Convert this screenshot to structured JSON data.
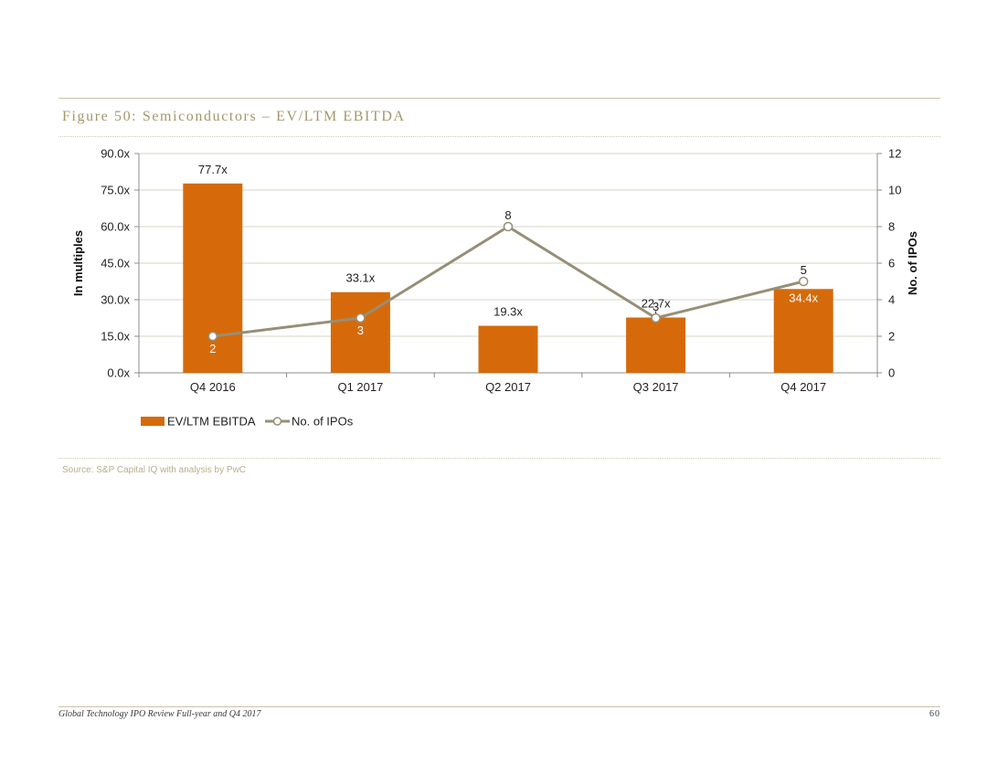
{
  "page": {
    "figure_title": "Figure 50: Semiconductors – EV/LTM EBITDA",
    "source": "Source: S&P Capital IQ with analysis by PwC",
    "footer_left": "Global Technology IPO Review Full-year and Q4 2017",
    "footer_right": "60"
  },
  "colors": {
    "bar": "#d66a0a",
    "line": "#968f77",
    "title": "#a5976c",
    "grid": "#d5d5c8"
  },
  "chart_data": {
    "type": "bar",
    "categories": [
      "Q4 2016",
      "Q1 2017",
      "Q2 2017",
      "Q3 2017",
      "Q4 2017"
    ],
    "bars": {
      "name": "EV/LTM EBITDA",
      "values": [
        77.7,
        33.1,
        19.3,
        22.7,
        34.4
      ],
      "labels": [
        "77.7x",
        "33.1x",
        "19.3x",
        "22.7x",
        "34.4x"
      ]
    },
    "line": {
      "name": "No. of IPOs",
      "values": [
        2,
        3,
        8,
        3,
        5
      ],
      "labels": [
        "2",
        "3",
        "8",
        "3",
        "5"
      ]
    },
    "ylabel_left": "In multiples",
    "ylabel_right": "No. of IPOs",
    "ylim_left": [
      0,
      90
    ],
    "ylim_right": [
      0,
      12
    ],
    "yticks_left": [
      "0.0x",
      "15.0x",
      "30.0x",
      "45.0x",
      "60.0x",
      "75.0x",
      "90.0x"
    ],
    "yticks_right": [
      "0",
      "2",
      "4",
      "6",
      "8",
      "10",
      "12"
    ],
    "grid": true,
    "legend_position": "bottom-left"
  }
}
